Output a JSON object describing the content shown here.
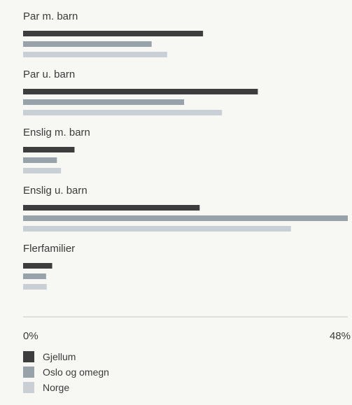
{
  "chart_data": {
    "type": "bar",
    "orientation": "horizontal",
    "categories": [
      "Par m. barn",
      "Par u. barn",
      "Enslig m. barn",
      "Enslig u. barn",
      "Flerfamilier"
    ],
    "series": [
      {
        "name": "Gjellum",
        "color": "#3d3d3d",
        "values": [
          26.6,
          34.7,
          7.6,
          26.1,
          4.3
        ]
      },
      {
        "name": "Oslo og omegn",
        "color": "#97a2aa",
        "values": [
          19.0,
          23.8,
          5.0,
          48.0,
          3.4
        ]
      },
      {
        "name": "Norge",
        "color": "#c9d0d5",
        "values": [
          21.3,
          29.4,
          5.6,
          39.6,
          3.5
        ]
      }
    ],
    "xlim": [
      0,
      48
    ],
    "x_ticks": [
      "0%",
      "48%"
    ],
    "legend_position": "bottom-left",
    "grid": false
  }
}
